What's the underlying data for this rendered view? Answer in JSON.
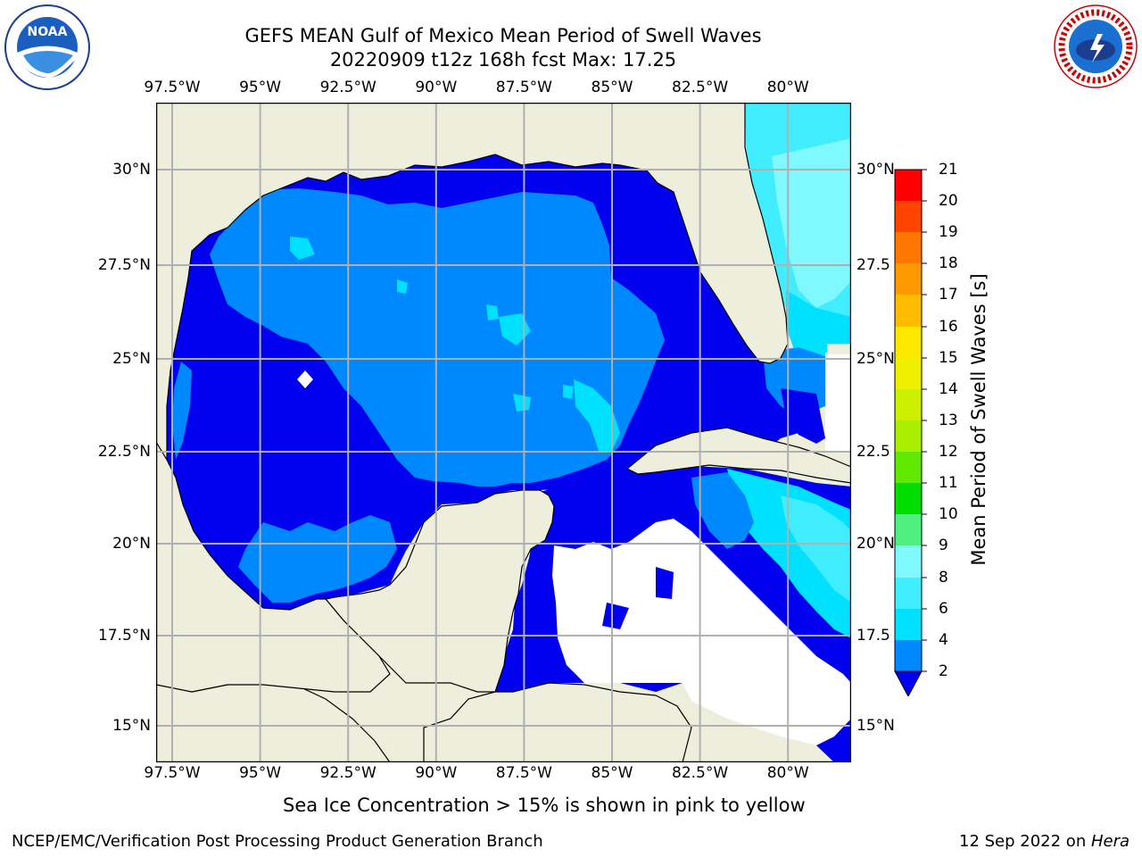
{
  "title": {
    "line1": "GEFS MEAN Gulf of Mexico Mean Period of Swell Waves",
    "line2": "20220909 t12z 168h fcst   Max: 17.25"
  },
  "logos": {
    "left": "noaa-logo",
    "right": "national-weather-service-logo",
    "left_text": "NOAA",
    "right_text": "NATIONAL WEATHER SERVICE"
  },
  "map": {
    "type": "filled-contour map",
    "lon_ticks": [
      "97.5°W",
      "95°W",
      "92.5°W",
      "90°W",
      "87.5°W",
      "85°W",
      "82.5°W",
      "80°W"
    ],
    "lat_ticks_left": [
      "30°N",
      "27.5°N",
      "25°N",
      "22.5°N",
      "20°N",
      "17.5°N",
      "15°N"
    ],
    "lat_ticks_right": [
      "30°N",
      "27.5",
      "25°N",
      "22.5",
      "20°N",
      "17.5",
      "15°N"
    ],
    "lon_range": [
      -98,
      -78.2
    ],
    "lat_range": [
      14,
      31.8
    ],
    "gridlines": true,
    "colors": {
      "land": "#eeeedd",
      "coast": "#000000",
      "grid": "#b0b0b0",
      "ice_note_color": "#ffff00"
    }
  },
  "colorbar": {
    "label": "Mean Period of Swell Waves [s]",
    "ticks": [
      "21",
      "20",
      "19",
      "18",
      "17",
      "16",
      "15",
      "14",
      "13",
      "12",
      "11",
      "10",
      "9",
      "8",
      "6",
      "4",
      "2"
    ],
    "bins": [
      {
        "from": 2,
        "to": 4,
        "color": "#0088ff"
      },
      {
        "from": 4,
        "to": 6,
        "color": "#00e0ff"
      },
      {
        "from": 6,
        "to": 8,
        "color": "#40eeff"
      },
      {
        "from": 8,
        "to": 9,
        "color": "#80f8ff"
      },
      {
        "from": 9,
        "to": 10,
        "color": "#50f080"
      },
      {
        "from": 10,
        "to": 11,
        "color": "#00dd00"
      },
      {
        "from": 11,
        "to": 12,
        "color": "#60e800"
      },
      {
        "from": 12,
        "to": 13,
        "color": "#aaee00"
      },
      {
        "from": 13,
        "to": 14,
        "color": "#ccf000"
      },
      {
        "from": 14,
        "to": 15,
        "color": "#eef000"
      },
      {
        "from": 15,
        "to": 16,
        "color": "#ffe800"
      },
      {
        "from": 16,
        "to": 17,
        "color": "#ffbb00"
      },
      {
        "from": 17,
        "to": 18,
        "color": "#ff9900"
      },
      {
        "from": 18,
        "to": 19,
        "color": "#ff7700"
      },
      {
        "from": 19,
        "to": 20,
        "color": "#ff4400"
      },
      {
        "from": 20,
        "to": 21,
        "color": "#ff0000"
      }
    ],
    "under_color": "#0000ee"
  },
  "note": "Sea Ice Concentration > 15% is shown in pink to yellow",
  "footer": {
    "left": "NCEP/EMC/Verification Post Processing Product Generation Branch",
    "right_date": "12 Sep 2022 on ",
    "right_host": "Hera"
  }
}
